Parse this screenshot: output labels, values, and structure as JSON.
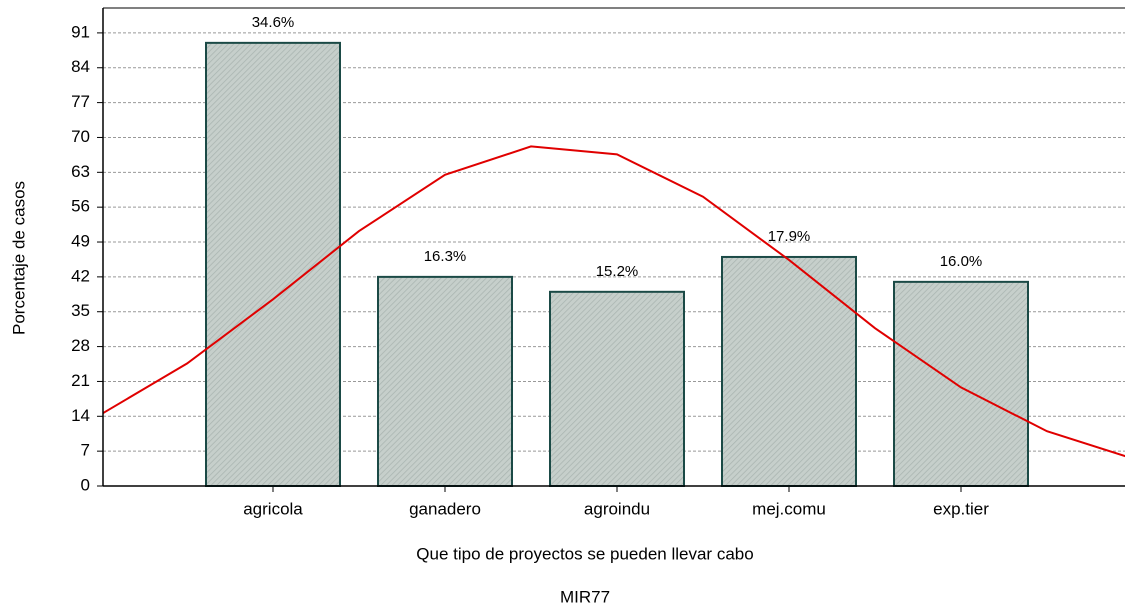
{
  "chart_data": {
    "type": "bar",
    "x_label": "Que tipo de proyectos se pueden llevar  cabo",
    "subtitle": "MIR77",
    "y_label": "Porcentaje de casos",
    "categories": [
      "agricola",
      "ganadero",
      "agroindu",
      "mej.comu",
      "exp.tier"
    ],
    "values": [
      89,
      42,
      39,
      46,
      41
    ],
    "bar_labels": [
      "34.6%",
      "16.3%",
      "15.2%",
      "17.9%",
      "16.0%"
    ],
    "color": "#c6cfcb",
    "edge_color": "#1b4a46",
    "ylim": [
      0,
      96
    ],
    "yticks": [
      0,
      7,
      14,
      21,
      28,
      35,
      42,
      49,
      56,
      63,
      70,
      77,
      84,
      91
    ],
    "grid": true,
    "curve": {
      "type": "line",
      "color": "#e00000",
      "x": [
        0,
        0.5,
        1,
        1.5,
        2,
        2.5,
        3,
        3.5,
        4,
        4.5,
        5,
        5.5,
        6
      ],
      "values": [
        14.4,
        24.6,
        37.5,
        51.2,
        62.5,
        68.2,
        66.6,
        58.1,
        45.4,
        31.7,
        19.8,
        11.0,
        5.5
      ]
    }
  }
}
